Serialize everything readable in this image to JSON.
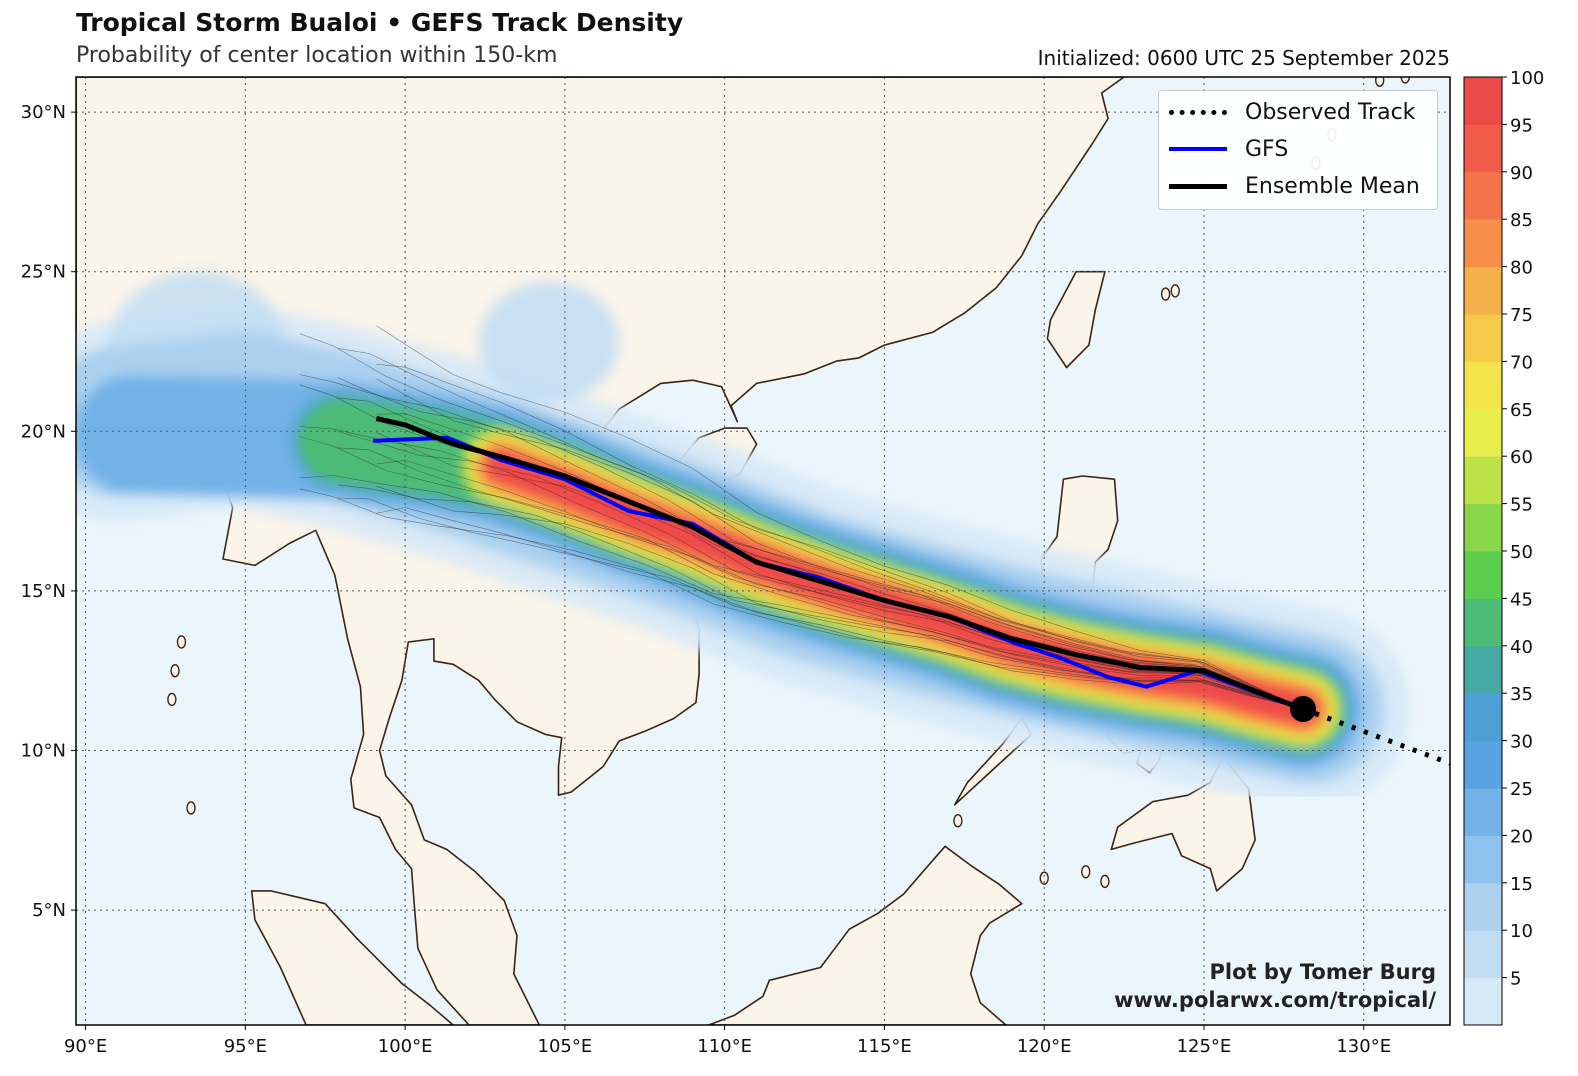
{
  "header": {
    "title": "Tropical Storm Bualoi • GEFS Track Density",
    "subtitle": "Probability of center location within 150-km",
    "initialized": "Initialized: 0600 UTC 25 September 2025"
  },
  "legend": {
    "items": [
      {
        "label": "Observed Track",
        "style": "dotted",
        "color": "#000000"
      },
      {
        "label": "GFS",
        "style": "solid",
        "color": "#0000ff"
      },
      {
        "label": "Ensemble Mean",
        "style": "solid",
        "color": "#000000"
      }
    ]
  },
  "credit": {
    "line1": "Plot by Tomer Burg",
    "line2": "www.polarwx.com/tropical/"
  },
  "map": {
    "lon_range": [
      89.7,
      132.7
    ],
    "lat_range": [
      1.4,
      31.1
    ],
    "lon_ticks": [
      "90°E",
      "95°E",
      "100°E",
      "105°E",
      "110°E",
      "115°E",
      "120°E",
      "125°E",
      "130°E"
    ],
    "lat_ticks": [
      "5°N",
      "10°N",
      "15°N",
      "20°N",
      "25°N",
      "30°N"
    ],
    "ocean_color": "#eaf6fb",
    "land_color": "#faf4e9",
    "coast_color": "#3d2312",
    "storm_position": {
      "lon": 128.1,
      "lat": 11.3
    },
    "observed_track": [
      [
        128.1,
        11.3
      ],
      [
        132.7,
        9.6
      ]
    ],
    "gfs_track": [
      [
        99.0,
        19.7
      ],
      [
        101.3,
        19.8
      ],
      [
        103.0,
        19.1
      ],
      [
        105.0,
        18.5
      ],
      [
        107.0,
        17.5
      ],
      [
        109.0,
        17.1
      ],
      [
        111.0,
        15.9
      ],
      [
        113.0,
        15.4
      ],
      [
        115.0,
        14.7
      ],
      [
        117.0,
        14.2
      ],
      [
        119.0,
        13.4
      ],
      [
        120.5,
        12.9
      ],
      [
        122.0,
        12.3
      ],
      [
        123.2,
        12.0
      ],
      [
        124.8,
        12.5
      ],
      [
        126.4,
        11.9
      ],
      [
        128.1,
        11.3
      ]
    ],
    "ensemble_mean_track": [
      [
        99.1,
        20.4
      ],
      [
        100.0,
        20.2
      ],
      [
        101.5,
        19.6
      ],
      [
        103.0,
        19.2
      ],
      [
        105.0,
        18.6
      ],
      [
        107.0,
        17.8
      ],
      [
        109.0,
        17.0
      ],
      [
        111.0,
        15.9
      ],
      [
        113.0,
        15.3
      ],
      [
        115.0,
        14.7
      ],
      [
        117.0,
        14.2
      ],
      [
        119.0,
        13.5
      ],
      [
        121.0,
        13.0
      ],
      [
        123.0,
        12.6
      ],
      [
        125.0,
        12.5
      ],
      [
        126.5,
        11.9
      ],
      [
        128.1,
        11.3
      ]
    ]
  },
  "colorbar": {
    "ticks": [
      "5",
      "10",
      "15",
      "20",
      "25",
      "30",
      "35",
      "40",
      "45",
      "50",
      "55",
      "60",
      "65",
      "70",
      "75",
      "80",
      "85",
      "90",
      "95",
      "100"
    ],
    "colors": [
      "#d6e9f7",
      "#c1ddf3",
      "#abd1ef",
      "#8ec2ec",
      "#72b2e7",
      "#5aa3e2",
      "#4e9fd6",
      "#48a8a3",
      "#4ebb77",
      "#5ccd4f",
      "#8ad64a",
      "#bde248",
      "#e6ec48",
      "#f4e34a",
      "#f6cb4a",
      "#f6b04a",
      "#f68f4a",
      "#f4744a",
      "#f25a4a",
      "#ef4a4a"
    ]
  }
}
